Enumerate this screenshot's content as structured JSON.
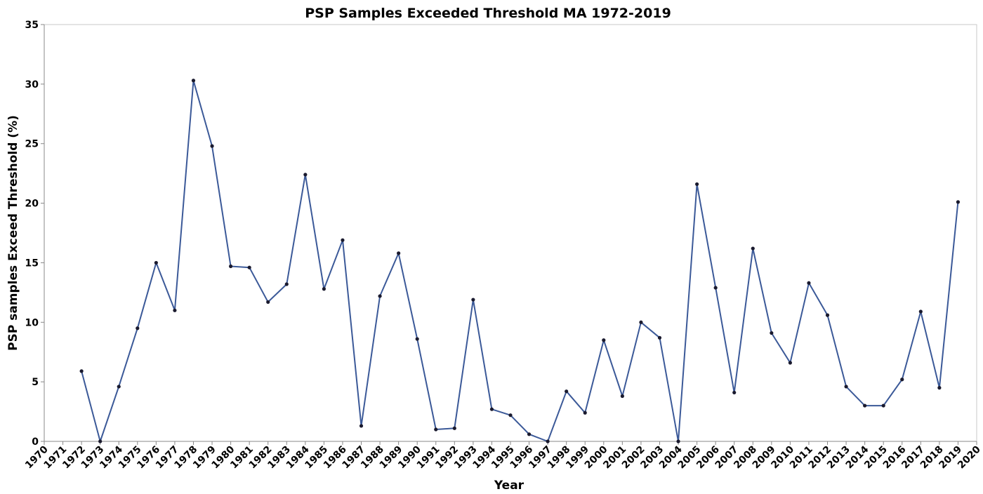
{
  "chart_data": {
    "type": "line",
    "title": "PSP Samples Exceeded Threshold MA 1972-2019",
    "xlabel": "Year",
    "ylabel": "PSP samples Exceed Threshold (%)",
    "xlim": [
      1970,
      2020
    ],
    "ylim": [
      0,
      35
    ],
    "yticks": [
      0,
      5,
      10,
      15,
      20,
      25,
      30,
      35
    ],
    "xticks": [
      1970,
      1971,
      1972,
      1973,
      1974,
      1975,
      1976,
      1977,
      1978,
      1979,
      1980,
      1981,
      1982,
      1983,
      1984,
      1985,
      1986,
      1987,
      1988,
      1989,
      1990,
      1991,
      1992,
      1993,
      1994,
      1995,
      1996,
      1997,
      1998,
      1999,
      2000,
      2001,
      2002,
      2003,
      2004,
      2005,
      2006,
      2007,
      2008,
      2009,
      2010,
      2011,
      2012,
      2013,
      2014,
      2015,
      2016,
      2017,
      2018,
      2019,
      2020
    ],
    "grid": false,
    "line_color": "#3b5998",
    "marker_color": "#1a1a2e",
    "series": [
      {
        "x": [
          1972,
          1973,
          1974,
          1975,
          1976,
          1977,
          1978,
          1979,
          1980,
          1981,
          1982,
          1983,
          1984,
          1985,
          1986,
          1987,
          1988,
          1989,
          1990,
          1991,
          1992,
          1993,
          1994,
          1995,
          1996,
          1997,
          1998,
          1999,
          2000,
          2001,
          2002,
          2003,
          2004,
          2005,
          2006,
          2007,
          2008,
          2009,
          2010,
          2011,
          2012,
          2013,
          2014,
          2015,
          2016,
          2017,
          2018,
          2019
        ],
        "values": [
          5.9,
          0,
          4.6,
          9.5,
          15.0,
          11.0,
          30.3,
          24.8,
          14.7,
          14.6,
          11.7,
          13.2,
          22.4,
          12.8,
          16.9,
          1.3,
          12.2,
          15.8,
          8.6,
          1.0,
          1.1,
          11.9,
          2.7,
          2.2,
          0.6,
          0,
          4.2,
          2.4,
          8.5,
          3.8,
          10.0,
          8.7,
          0,
          21.6,
          12.9,
          4.1,
          16.2,
          9.1,
          6.6,
          13.3,
          10.6,
          4.6,
          3.0,
          3.0,
          5.2,
          10.9,
          4.5,
          20.1
        ]
      }
    ]
  }
}
